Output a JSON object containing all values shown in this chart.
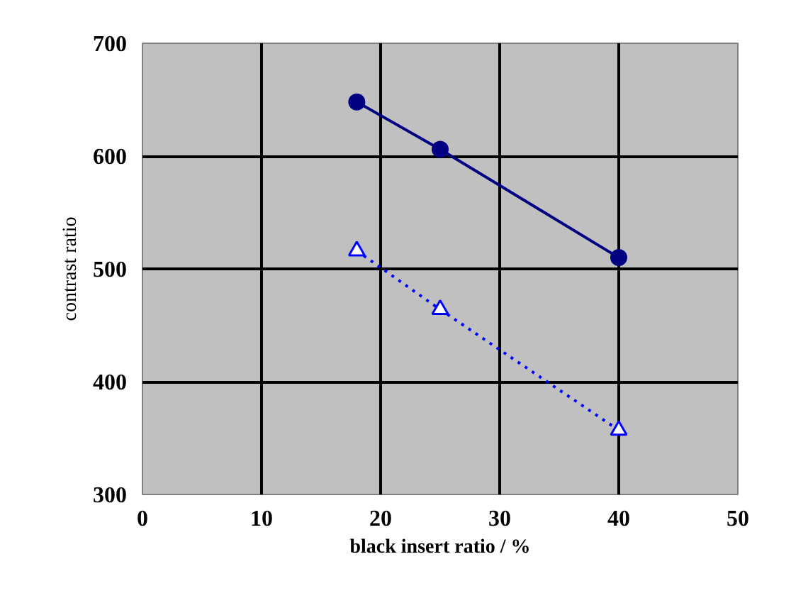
{
  "chart_data": {
    "type": "line",
    "xlabel": "black insert ratio / %",
    "ylabel": "contrast ratio",
    "xlim": [
      0,
      50
    ],
    "ylim": [
      300,
      700
    ],
    "xticks": [
      0,
      10,
      20,
      30,
      40,
      50
    ],
    "yticks": [
      300,
      400,
      500,
      600,
      700
    ],
    "grid": true,
    "series": [
      {
        "color": "#000080",
        "x": [
          18,
          25,
          40
        ],
        "values": [
          648,
          606,
          510
        ],
        "marker": "circle",
        "line_style": "solid"
      },
      {
        "color": "#0000ff",
        "x": [
          18,
          25,
          40
        ],
        "values": [
          516,
          464,
          357
        ],
        "marker": "triangle",
        "line_style": "dotted"
      }
    ]
  }
}
